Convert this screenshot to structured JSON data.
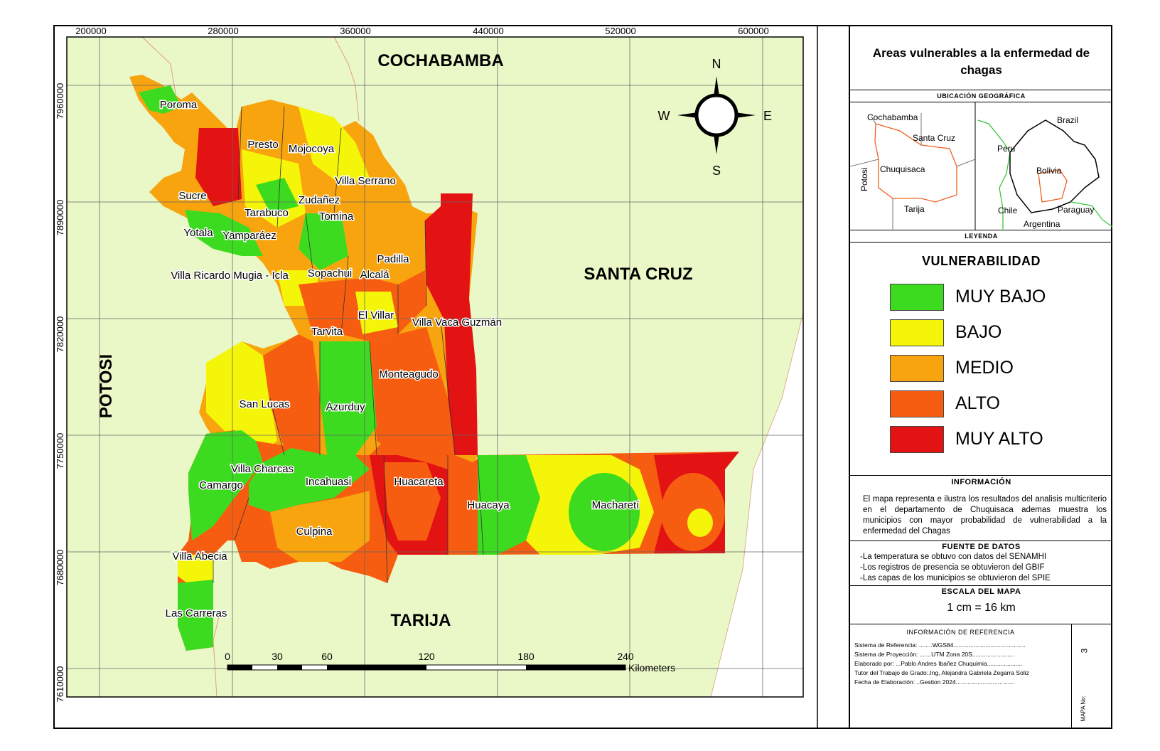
{
  "axes": {
    "x_ticks": [
      "200000",
      "280000",
      "360000",
      "440000",
      "520000",
      "600000"
    ],
    "y_ticks": [
      "7960000",
      "7890000",
      "7820000",
      "7750000",
      "7680000",
      "7610000"
    ]
  },
  "neighbors": {
    "north": "COCHABAMBA",
    "east": "SANTA CRUZ",
    "west": "POTOSI",
    "south": "TARIJA"
  },
  "compass": {
    "n": "N",
    "s": "S",
    "e": "E",
    "w": "W"
  },
  "municipalities": [
    "Poroma",
    "Presto",
    "Mojocoya",
    "Villa Serrano",
    "Sucre",
    "Zudañez",
    "Tarabuco",
    "Tomina",
    "Yotala",
    "Yamparáez",
    "Padilla",
    "Villa Ricardo Mugia - Icla",
    "Sopachui",
    "Alcalá",
    "El Villar",
    "Villa Vaca Guzmán",
    "Tarvita",
    "Monteagudo",
    "San Lucas",
    "Azurduy",
    "Villa Charcas",
    "Camargo",
    "Incahuasi",
    "Huacareta",
    "Huacaya",
    "Macharetí",
    "Culpina",
    "Villa Abecia",
    "Las Carreras"
  ],
  "scalebar": {
    "ticks": [
      "0",
      "30",
      "60",
      "120",
      "180",
      "240"
    ],
    "unit": "Kilometers"
  },
  "panel": {
    "title": "Areas vulnerables a la enfermedad de chagas",
    "location_caption": "UBICACIÓN GEOGRÁFICA",
    "inset1": {
      "labels": [
        "Cochabamba",
        "Santa Cruz",
        "Chuquisaca",
        "Potosi",
        "Tarija"
      ]
    },
    "inset2": {
      "labels": [
        "Brazil",
        "Peru",
        "Bolivia",
        "Chile",
        "Paraguay",
        "Argentina"
      ]
    },
    "legend_caption": "LEYENDA",
    "legend_title": "VULNERABILIDAD",
    "legend": [
      {
        "label": "MUY BAJO",
        "color": "#3ddb1f"
      },
      {
        "label": "BAJO",
        "color": "#f5f50a"
      },
      {
        "label": "MEDIO",
        "color": "#f7a40e"
      },
      {
        "label": "ALTO",
        "color": "#f75d10"
      },
      {
        "label": "MUY ALTO",
        "color": "#e31313"
      }
    ],
    "info_caption": "INFORMACIÓN",
    "info_text": "El mapa representa e ilustra los resultados del analisis multicriterio en el departamento de Chuquisaca ademas muestra los municipios con mayor probabilidad de vulnerabilidad a la enfermedad del Chagas",
    "sources_caption": "FUENTE DE DATOS",
    "sources": [
      "-La temperatura se obtuvo con datos del SENAMHI",
      "-Los registros de presencia se obtuvieron del GBIF",
      "-Las capas de los municipios se obtuvieron del SPIE"
    ],
    "scale_caption": "ESCALA DEL MAPA",
    "scale_text": "1 cm = 16 km",
    "ref_caption": "INFORMACIÓN DE REFERENCIA",
    "ref_lines": [
      "Sistema de Referencia: ........WGS84...........................................",
      "Sistema de Proyección: .......UTM Zona 20S.........................",
      "Elaborado por: ...Pablo Andres Ibañez Chuquimia.....................",
      "Tutor del Trabajo de Grado:.Ing, Alejandra Gabriela Zegarra Soliz",
      "Fecha de Elaboración: ..Gestion 2024..................................."
    ],
    "map_no_label": "MAPA No:",
    "map_no": "3"
  },
  "colors": {
    "background": "#eaf8c8",
    "frame": "#000000",
    "grid": "#666666",
    "border_red": "#e0562a"
  }
}
